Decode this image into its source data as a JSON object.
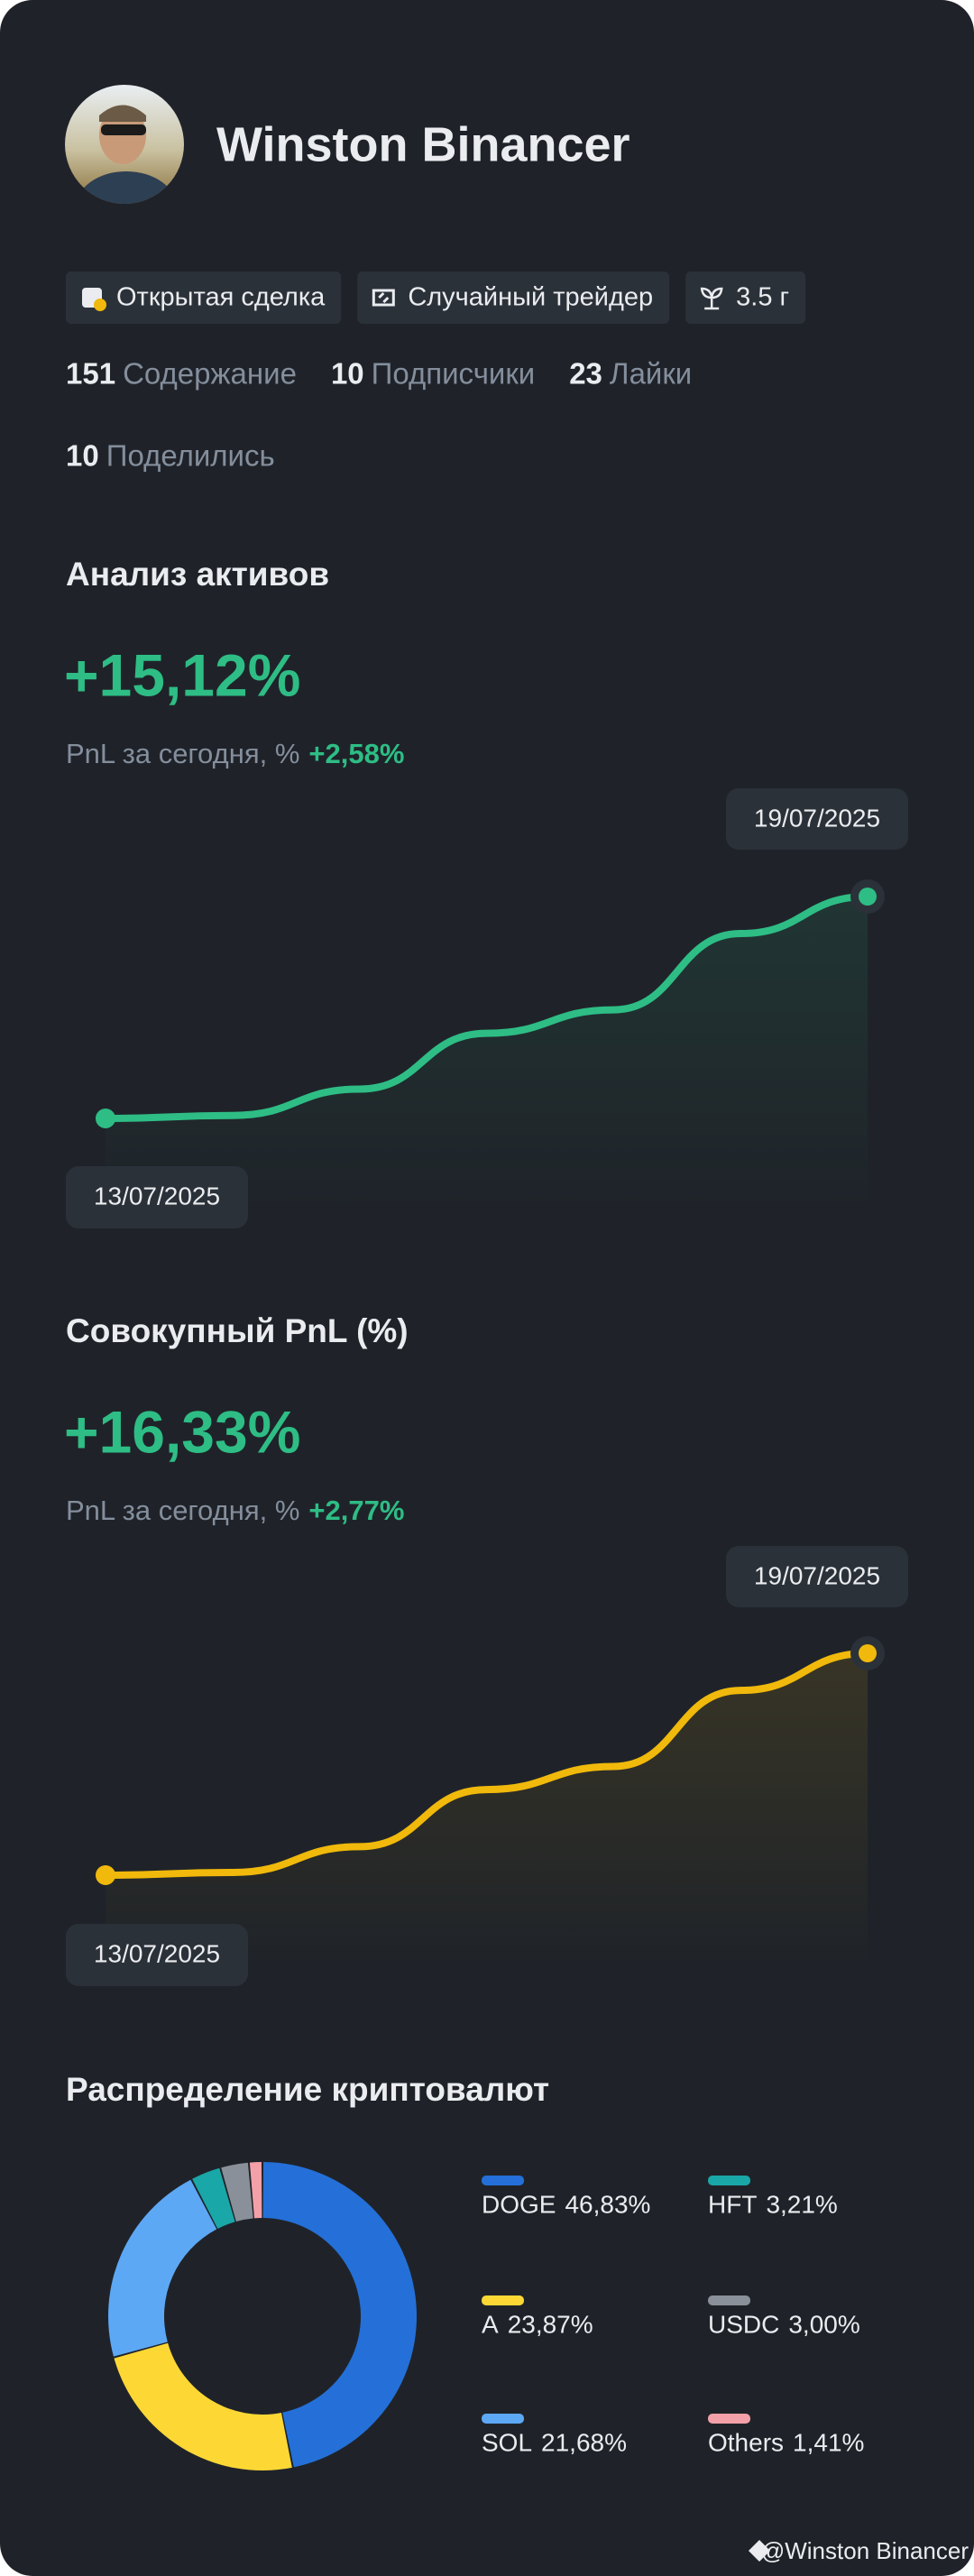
{
  "profile": {
    "name": "Winston Binancer",
    "tags": [
      "Открытая сделка",
      "Случайный трейдер",
      "3.5 г"
    ],
    "stats": [
      {
        "value": 151,
        "label": "Содержание"
      },
      {
        "value": 10,
        "label": "Подписчики"
      },
      {
        "value": 23,
        "label": "Лайки"
      },
      {
        "value": 10,
        "label": "Поделились"
      }
    ]
  },
  "charts": [
    {
      "type": "line",
      "title": "Анализ активов",
      "headline": "+15,12%",
      "subtitle": "PnL за сегодня, %",
      "change": "+2,58%",
      "color": "#2ebd85",
      "start_date": "13/07/2025",
      "end_date": "19/07/2025",
      "values": [
        0,
        0.2,
        2.0,
        5.8,
        7.4,
        12.6,
        15.12
      ]
    },
    {
      "type": "line",
      "title": "Совокупный PnL (%)",
      "headline": "+16,33%",
      "subtitle": "PnL за сегодня, %",
      "change": "+2,77%",
      "color": "#f0b90b",
      "start_date": "13/07/2025",
      "end_date": "19/07/2025",
      "values": [
        0,
        0.2,
        2.1,
        6.3,
        8.0,
        13.6,
        16.33
      ]
    }
  ],
  "distribution": {
    "type": "pie",
    "title": "Распределение криптовалют",
    "categories": [
      "DOGE",
      "A",
      "SOL",
      "HFT",
      "USDC",
      "Others"
    ],
    "values": [
      46.83,
      23.87,
      21.68,
      3.21,
      3.0,
      1.41
    ],
    "value_labels": [
      "46,83%",
      "23,87%",
      "21,68%",
      "3,21%",
      "3,00%",
      "1,41%"
    ],
    "colors": [
      "#2470d8",
      "#fdd835",
      "#5da8f5",
      "#1aa7a7",
      "#8a9099",
      "#f4a0a8"
    ]
  },
  "watermark": "@Winston Binancer"
}
